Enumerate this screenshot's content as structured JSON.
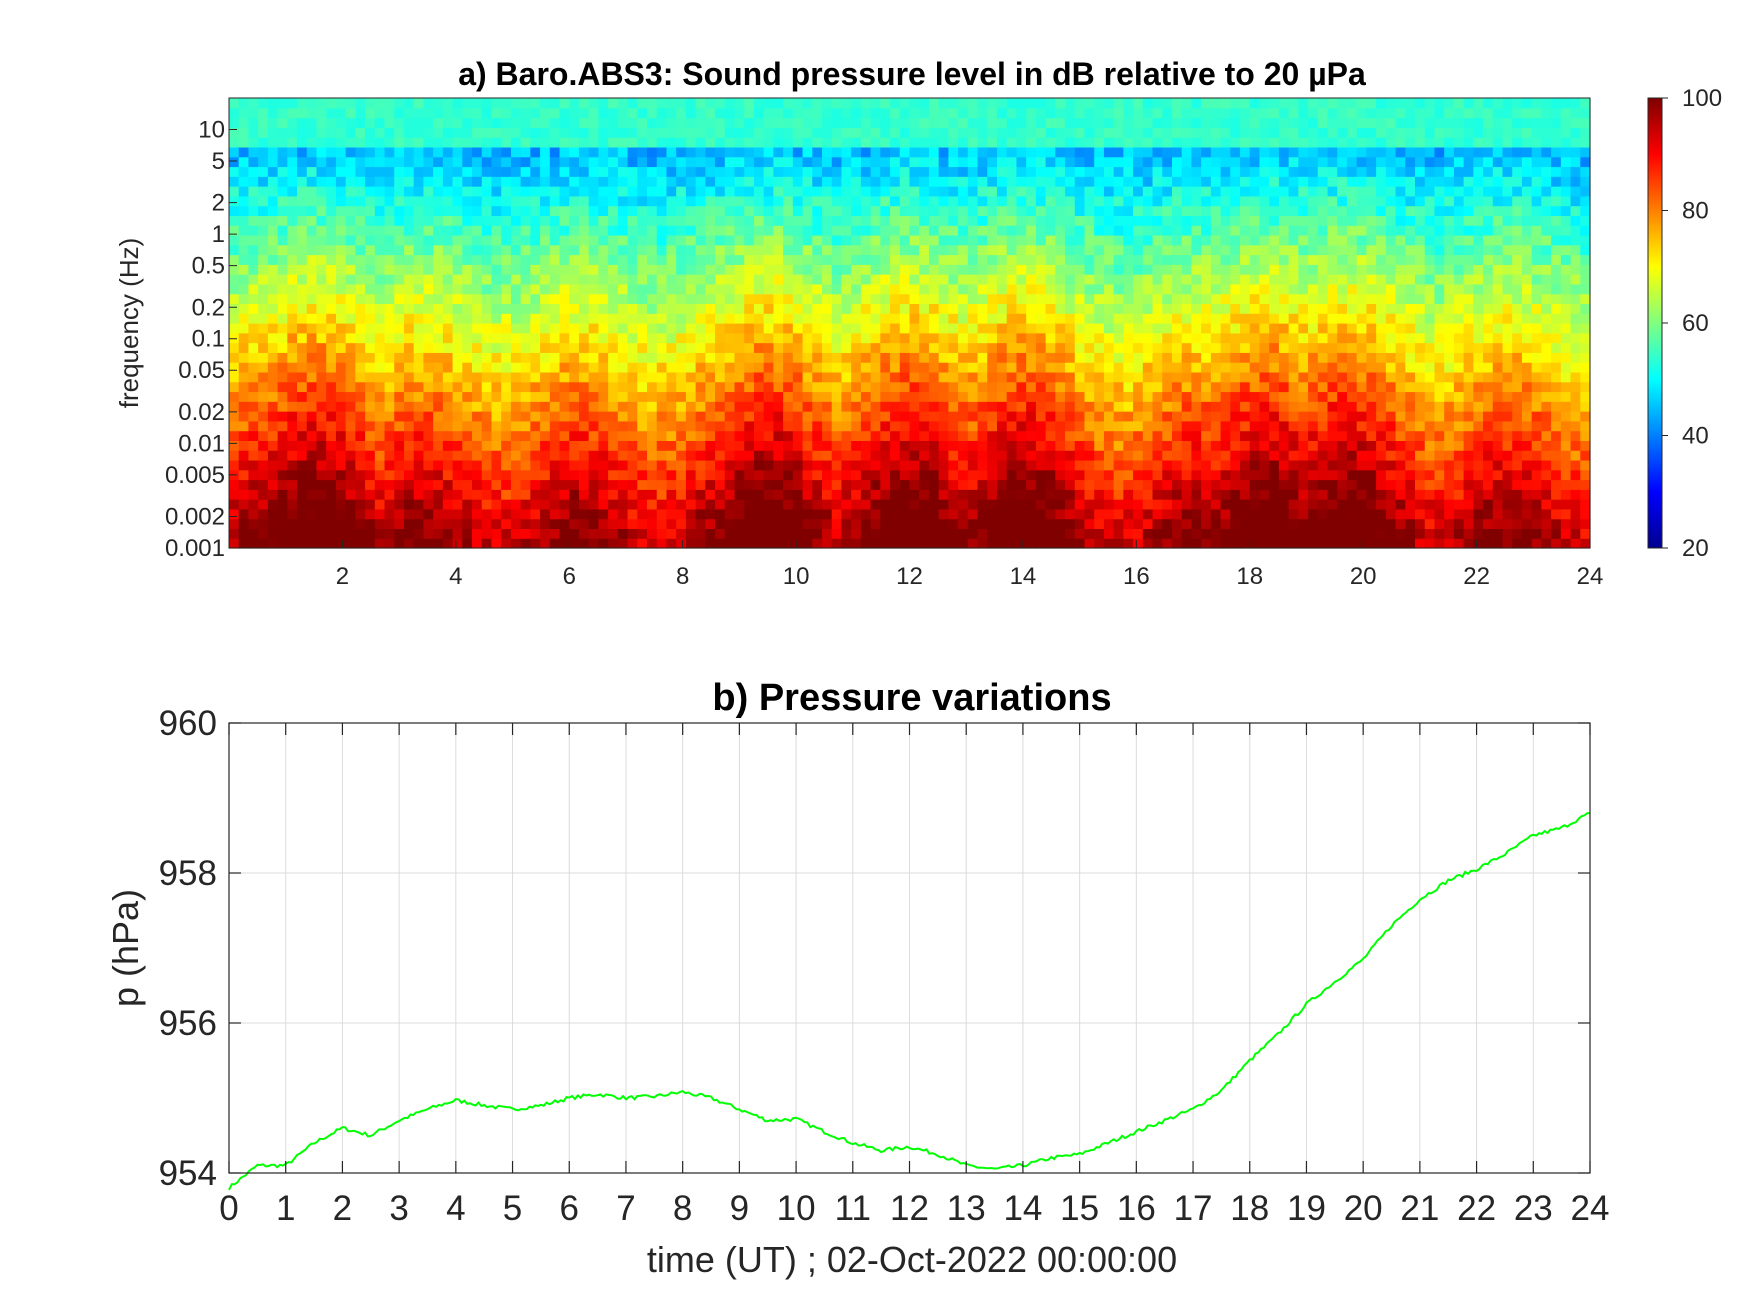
{
  "chart_data": [
    {
      "type": "heatmap",
      "title": "a) Baro.ABS3: Sound pressure level in dB relative to 20 µPa",
      "xlabel": "",
      "ylabel": "frequency (Hz)",
      "xlim": [
        0,
        24
      ],
      "x_ticks": [
        2,
        4,
        6,
        8,
        10,
        12,
        14,
        16,
        18,
        20,
        22,
        24
      ],
      "x_tick_labels": [
        "2",
        "4",
        "6",
        "8",
        "10",
        "12",
        "14",
        "16",
        "18",
        "20",
        "22",
        "24"
      ],
      "y_scale": "log",
      "ylim": [
        0.001,
        20
      ],
      "y_ticks": [
        0.001,
        0.002,
        0.005,
        0.01,
        0.02,
        0.05,
        0.1,
        0.2,
        0.5,
        1,
        2,
        5,
        10
      ],
      "y_tick_labels": [
        "0.001",
        "0.002",
        "0.005",
        "0.01",
        "0.02",
        "0.05",
        "0.1",
        "0.2",
        "0.5",
        "1",
        "2",
        "5",
        "10"
      ],
      "colormap": "jet",
      "colorbar": {
        "range": [
          20,
          100
        ],
        "ticks": [
          20,
          40,
          60,
          80,
          100
        ],
        "tick_labels": [
          "20",
          "40",
          "60",
          "80",
          "100"
        ]
      },
      "activity_bursts_time_h": [
        1.5,
        9.5,
        12.0,
        14,
        18.3,
        19.7
      ],
      "quiet_band_db": 45,
      "low_freq_level_db": 92
    },
    {
      "type": "line",
      "title": "b) Pressure variations",
      "xlabel": "time (UT) ; 02-Oct-2022 00:00:00",
      "ylabel": "p (hPa)",
      "xlim": [
        0,
        24
      ],
      "ylim": [
        954,
        960
      ],
      "x_ticks": [
        "0",
        "1",
        "2",
        "3",
        "4",
        "5",
        "6",
        "7",
        "8",
        "9",
        "10",
        "11",
        "12",
        "13",
        "14",
        "15",
        "16",
        "17",
        "18",
        "19",
        "20",
        "21",
        "22",
        "23",
        "24"
      ],
      "y_ticks": [
        "954",
        "956",
        "958",
        "960"
      ],
      "grid": true,
      "series": [
        {
          "color": "#00ff00",
          "x": [
            0,
            0.5,
            1,
            1.5,
            2,
            2.5,
            3,
            3.5,
            4,
            4.5,
            5,
            5.5,
            6,
            6.5,
            7,
            7.5,
            8,
            8.5,
            9,
            9.5,
            10,
            10.5,
            11,
            11.5,
            12,
            12.5,
            13,
            13.5,
            14,
            14.5,
            15,
            15.5,
            16,
            16.5,
            17,
            17.5,
            18,
            18.5,
            19,
            19.5,
            20,
            20.5,
            21,
            21.5,
            22,
            22.5,
            23,
            23.5,
            24
          ],
          "values": [
            953.8,
            954.1,
            954.1,
            954.4,
            954.6,
            954.5,
            954.7,
            954.85,
            954.97,
            954.9,
            954.85,
            954.9,
            955.0,
            955.05,
            955.0,
            955.02,
            955.08,
            955.0,
            954.85,
            954.7,
            954.72,
            954.55,
            954.4,
            954.3,
            954.35,
            954.25,
            954.1,
            954.05,
            954.1,
            954.2,
            954.25,
            954.4,
            954.55,
            954.7,
            954.85,
            955.1,
            955.5,
            955.85,
            956.25,
            956.55,
            956.85,
            957.3,
            957.65,
            957.9,
            958.05,
            958.25,
            958.5,
            958.6,
            958.8
          ]
        }
      ]
    }
  ]
}
